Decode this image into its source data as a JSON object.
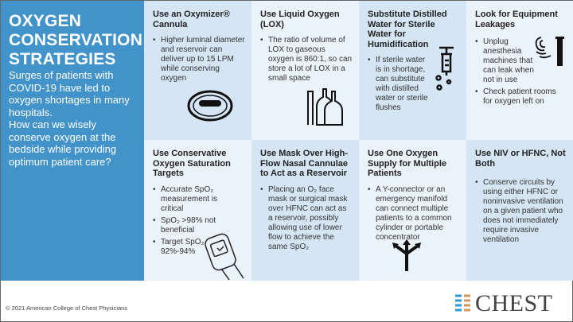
{
  "left": {
    "title": "OXYGEN CONSERVATION STRATEGIES",
    "intro1": "Surges of patients with COVID-19 have led to oxygen shortages in many hospitals.",
    "intro2": "How can we wisely conserve oxygen at the bedside while providing optimum patient care?"
  },
  "cards": [
    {
      "title": "Use an Oxymizer® Cannula",
      "bullets": [
        "Higher luminal diameter and reservoir can deliver up to 15 LPM while conserving oxygen"
      ],
      "icon": "cannula-icon"
    },
    {
      "title": "Use Liquid Oxygen (LOX)",
      "bullets": [
        "The ratio of volume of LOX to gaseous oxygen is 860:1, so can store a lot of LOX in a small space"
      ],
      "icon": "oxygen-tanks-icon"
    },
    {
      "title": "Substitute Distilled Water for Sterile Water for Humidification",
      "bullets": [
        "If sterile water is in shortage, can substitute with distilled water or sterile flushes"
      ],
      "icon": "syringe-icon"
    },
    {
      "title": "Look for Equipment Leakages",
      "bullets": [
        "Unplug anesthesia machines that can leak when not in use",
        "Check patient rooms for oxygen left on"
      ],
      "icon": "gas-leak-icon"
    },
    {
      "title": "Use Conservative Oxygen Saturation Targets",
      "bullets": [
        "Accurate SpO₂ measurement is critical",
        "SpO₂ >98% not beneficial",
        "Target SpO₂ 92%-94%"
      ],
      "icon": "pulse-oximeter-icon"
    },
    {
      "title": "Use Mask Over High-Flow Nasal Cannulae to Act as a Reservoir",
      "bullets": [
        "Placing an O₂ face mask or surgical mask over HFNC can act as a reservoir, possibly allowing use of lower flow to achieve the same SpO₂"
      ]
    },
    {
      "title": "Use One Oxygen Supply for Multiple Patients",
      "bullets": [
        "A Y-connector or an emergency manifold can connect multiple patients to a common cylinder or portable concentrator"
      ],
      "icon": "split-arrow-icon"
    },
    {
      "title": "Use NIV or HFNC, Not Both",
      "bullets": [
        "Conserve circuits by using either HFNC or noninvasive ventilation on a given patient who does not immediately require invasive ventilation"
      ]
    }
  ],
  "footer": {
    "copyright": "© 2021 American College of Chest Physicians",
    "logo": "CHEST"
  },
  "colors": {
    "left_panel": "#4393cb",
    "cell_dark": "#d5e5f3",
    "cell_light": "#eaf2fa"
  }
}
